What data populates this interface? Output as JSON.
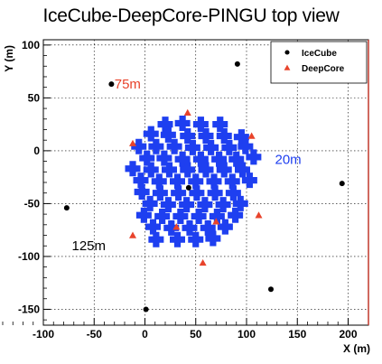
{
  "chart_data": {
    "type": "scatter",
    "title": "IceCube-DeepCore-PINGU top view",
    "xlabel": "X (m)",
    "ylabel": "Y (m)",
    "xlim": [
      -100,
      220
    ],
    "ylim": [
      -165,
      105
    ],
    "xticks": [
      -100,
      -50,
      0,
      50,
      100,
      150,
      200
    ],
    "yticks": [
      -150,
      -100,
      -50,
      0,
      50,
      100
    ],
    "grid": true,
    "legend_position": "top-right",
    "series": [
      {
        "name": "IceCube",
        "marker": "circle",
        "color": "#000000",
        "points": [
          [
            -33,
            63
          ],
          [
            91,
            82
          ],
          [
            -77,
            -54
          ],
          [
            43,
            -35
          ],
          [
            194,
            -31
          ],
          [
            124,
            -131
          ],
          [
            1,
            -150
          ]
        ]
      },
      {
        "name": "DeepCore",
        "marker": "triangle",
        "color": "#e8432b",
        "points": [
          [
            42,
            36
          ],
          [
            -12,
            7
          ],
          [
            105,
            14
          ],
          [
            -12,
            -80
          ],
          [
            112,
            -61
          ],
          [
            70,
            -67
          ],
          [
            31,
            -72
          ],
          [
            57,
            -106
          ]
        ]
      },
      {
        "name": "",
        "marker": "cross",
        "color": "#1e3ff0",
        "points": [
          [
            20,
            25
          ],
          [
            37,
            26
          ],
          [
            55,
            25
          ],
          [
            74,
            25
          ],
          [
            6,
            16
          ],
          [
            23,
            15
          ],
          [
            42,
            14
          ],
          [
            60,
            14
          ],
          [
            78,
            14
          ],
          [
            95,
            13
          ],
          [
            -6,
            4
          ],
          [
            11,
            4
          ],
          [
            29,
            4
          ],
          [
            47,
            3
          ],
          [
            65,
            3
          ],
          [
            83,
            3
          ],
          [
            99,
            4
          ],
          [
            2,
            -7
          ],
          [
            19,
            -7
          ],
          [
            37,
            -8
          ],
          [
            55,
            -8
          ],
          [
            73,
            -8
          ],
          [
            90,
            -8
          ],
          [
            107,
            -6
          ],
          [
            -12,
            -17
          ],
          [
            6,
            -18
          ],
          [
            24,
            -18
          ],
          [
            42,
            -18
          ],
          [
            60,
            -18
          ],
          [
            78,
            -18
          ],
          [
            96,
            -18
          ],
          [
            -4,
            -28
          ],
          [
            14,
            -29
          ],
          [
            32,
            -29
          ],
          [
            50,
            -29
          ],
          [
            68,
            -29
          ],
          [
            86,
            -29
          ],
          [
            103,
            -28
          ],
          [
            -3,
            -39
          ],
          [
            15,
            -40
          ],
          [
            33,
            -40
          ],
          [
            51,
            -40
          ],
          [
            69,
            -40
          ],
          [
            87,
            -40
          ],
          [
            5,
            -50
          ],
          [
            23,
            -51
          ],
          [
            41,
            -51
          ],
          [
            59,
            -51
          ],
          [
            77,
            -51
          ],
          [
            94,
            -50
          ],
          [
            -1,
            -61
          ],
          [
            17,
            -62
          ],
          [
            35,
            -62
          ],
          [
            53,
            -62
          ],
          [
            71,
            -62
          ],
          [
            89,
            -61
          ],
          [
            8,
            -72
          ],
          [
            26,
            -73
          ],
          [
            44,
            -73
          ],
          [
            62,
            -73
          ],
          [
            79,
            -72
          ],
          [
            11,
            -84
          ],
          [
            32,
            -84
          ],
          [
            50,
            -84
          ],
          [
            67,
            -83
          ]
        ]
      }
    ],
    "annotations": [
      {
        "text": "75m",
        "x": -30,
        "y": 63,
        "color": "#e8432b"
      },
      {
        "text": "20m",
        "x": 128,
        "y": -8,
        "color": "#1e3ff0"
      },
      {
        "text": "125m",
        "x": -72,
        "y": -90,
        "color": "#000000"
      }
    ]
  }
}
